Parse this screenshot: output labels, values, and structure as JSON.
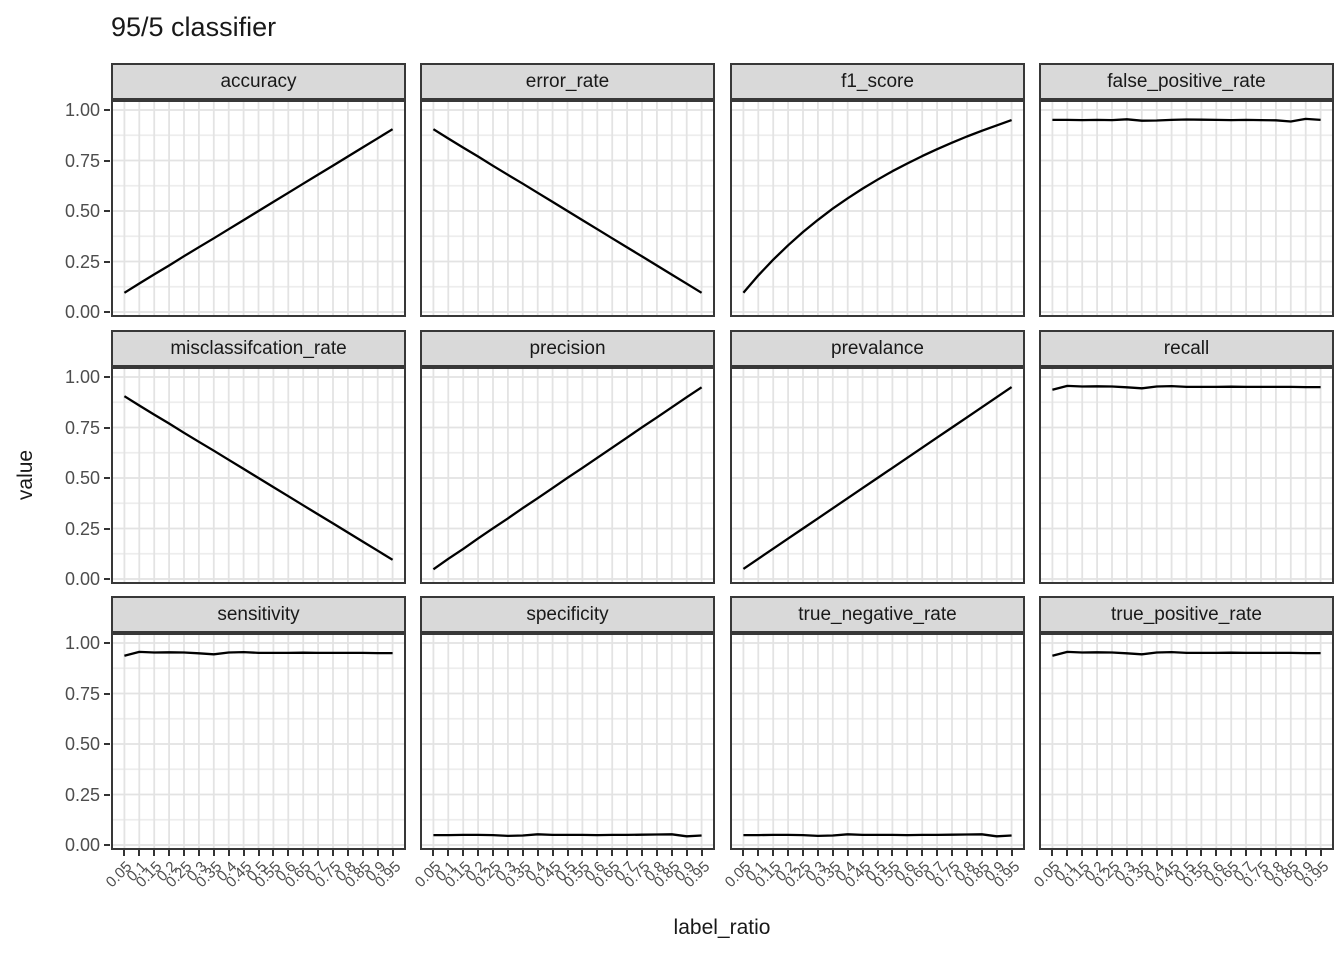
{
  "title": "95/5 classifier",
  "chart_data": {
    "type": "line",
    "layout": "facet_wrap 3 rows x 4 cols",
    "title": "95/5 classifier",
    "xlabel": "label_ratio",
    "ylabel": "value",
    "ylim": [
      0,
      1
    ],
    "grid": "on",
    "legend": "none",
    "x_tick_labels": [
      "0.05",
      "0.1",
      "0.15",
      "0.2",
      "0.25",
      "0.3",
      "0.35",
      "0.4",
      "0.45",
      "0.5",
      "0.55",
      "0.6",
      "0.65",
      "0.7",
      "0.75",
      "0.8",
      "0.85",
      "0.9",
      "0.95"
    ],
    "y_tick_labels": [
      "1.00",
      "0.75",
      "0.50",
      "0.25",
      "0.00"
    ],
    "y_tick_values": [
      1.0,
      0.75,
      0.5,
      0.25,
      0.0
    ],
    "x": [
      0.05,
      0.1,
      0.15,
      0.2,
      0.25,
      0.3,
      0.35,
      0.4,
      0.45,
      0.5,
      0.55,
      0.6,
      0.65,
      0.7,
      0.75,
      0.8,
      0.85,
      0.9,
      0.95
    ],
    "facets": [
      {
        "name": "accuracy",
        "values": [
          0.095,
          0.141,
          0.186,
          0.23,
          0.276,
          0.321,
          0.365,
          0.41,
          0.455,
          0.5,
          0.545,
          0.59,
          0.635,
          0.68,
          0.725,
          0.77,
          0.815,
          0.86,
          0.905
        ]
      },
      {
        "name": "error_rate",
        "values": [
          0.905,
          0.859,
          0.814,
          0.77,
          0.724,
          0.679,
          0.635,
          0.59,
          0.545,
          0.5,
          0.455,
          0.41,
          0.365,
          0.32,
          0.275,
          0.23,
          0.185,
          0.14,
          0.095
        ]
      },
      {
        "name": "f1_score",
        "values": [
          0.095,
          0.181,
          0.259,
          0.33,
          0.396,
          0.456,
          0.512,
          0.563,
          0.611,
          0.655,
          0.697,
          0.735,
          0.772,
          0.806,
          0.838,
          0.869,
          0.897,
          0.924,
          0.95
        ]
      },
      {
        "name": "false_positive_rate",
        "values": [
          0.951,
          0.951,
          0.95,
          0.951,
          0.95,
          0.954,
          0.947,
          0.948,
          0.951,
          0.953,
          0.952,
          0.951,
          0.95,
          0.951,
          0.95,
          0.949,
          0.943,
          0.956,
          0.951
        ]
      },
      {
        "name": "misclassifcation_rate",
        "values": [
          0.905,
          0.859,
          0.814,
          0.77,
          0.724,
          0.679,
          0.635,
          0.59,
          0.545,
          0.5,
          0.455,
          0.41,
          0.365,
          0.32,
          0.275,
          0.23,
          0.185,
          0.14,
          0.095
        ]
      },
      {
        "name": "precision",
        "values": [
          0.048,
          0.1,
          0.149,
          0.201,
          0.251,
          0.3,
          0.351,
          0.4,
          0.45,
          0.501,
          0.55,
          0.6,
          0.65,
          0.7,
          0.751,
          0.8,
          0.85,
          0.9,
          0.949
        ]
      },
      {
        "name": "prevalance",
        "values": [
          0.05,
          0.1,
          0.15,
          0.2,
          0.25,
          0.3,
          0.35,
          0.4,
          0.45,
          0.5,
          0.55,
          0.6,
          0.65,
          0.7,
          0.75,
          0.8,
          0.85,
          0.9,
          0.95
        ]
      },
      {
        "name": "recall",
        "values": [
          0.937,
          0.956,
          0.953,
          0.954,
          0.953,
          0.949,
          0.944,
          0.953,
          0.955,
          0.951,
          0.951,
          0.951,
          0.952,
          0.951,
          0.951,
          0.951,
          0.951,
          0.95,
          0.95
        ]
      },
      {
        "name": "sensitivity",
        "values": [
          0.937,
          0.956,
          0.953,
          0.954,
          0.953,
          0.949,
          0.944,
          0.953,
          0.955,
          0.951,
          0.951,
          0.951,
          0.952,
          0.951,
          0.951,
          0.951,
          0.951,
          0.95,
          0.95
        ]
      },
      {
        "name": "specificity",
        "values": [
          0.049,
          0.049,
          0.05,
          0.05,
          0.049,
          0.045,
          0.047,
          0.053,
          0.05,
          0.05,
          0.05,
          0.049,
          0.05,
          0.05,
          0.051,
          0.052,
          0.053,
          0.043,
          0.047
        ]
      },
      {
        "name": "true_negative_rate",
        "values": [
          0.049,
          0.049,
          0.05,
          0.05,
          0.049,
          0.045,
          0.047,
          0.053,
          0.05,
          0.05,
          0.05,
          0.049,
          0.05,
          0.05,
          0.051,
          0.052,
          0.053,
          0.043,
          0.047
        ]
      },
      {
        "name": "true_positive_rate",
        "values": [
          0.937,
          0.956,
          0.953,
          0.954,
          0.953,
          0.949,
          0.944,
          0.953,
          0.955,
          0.951,
          0.951,
          0.951,
          0.952,
          0.951,
          0.951,
          0.951,
          0.951,
          0.95,
          0.95
        ]
      }
    ],
    "colors": {
      "line": "#000000",
      "strip_fill": "#d9d9d9",
      "panel_border": "#383838",
      "grid_major": "#e3e3e3",
      "grid_minor": "#ededed",
      "tick_label": "#4d4d4d",
      "text": "#191919"
    }
  }
}
